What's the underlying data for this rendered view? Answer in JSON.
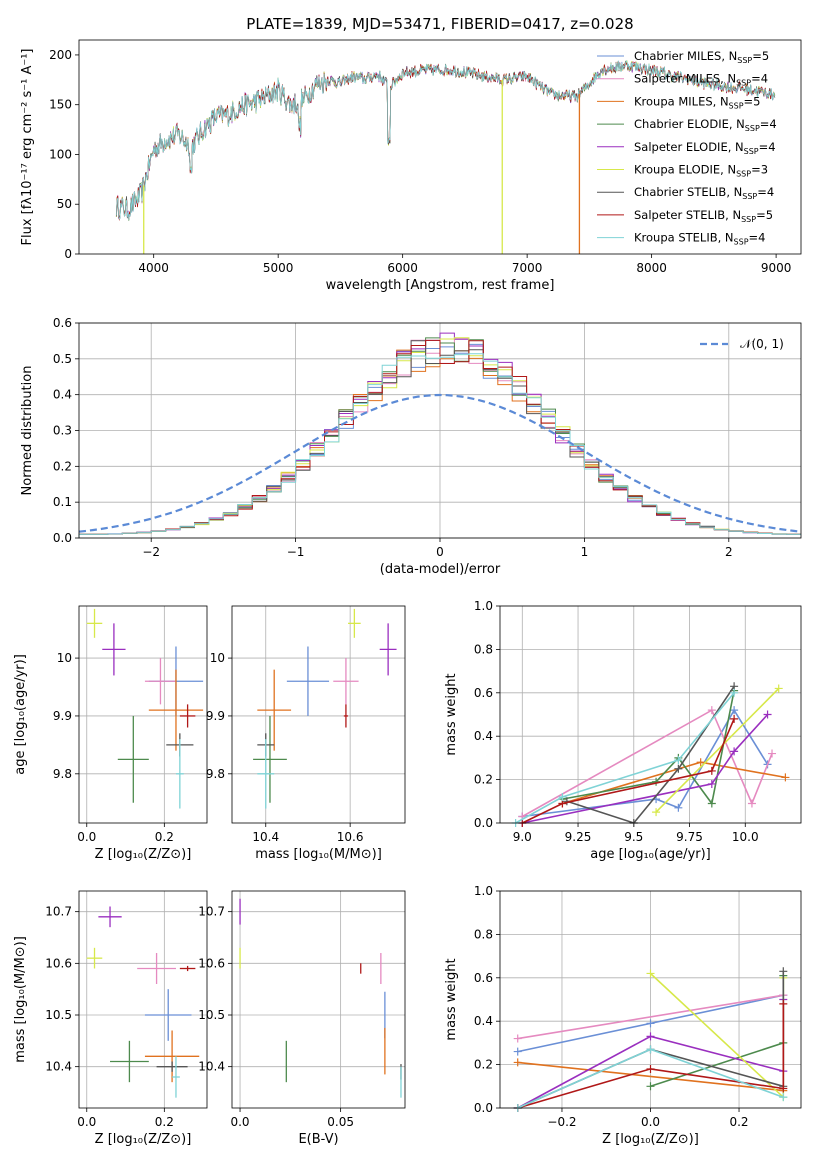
{
  "colors": {
    "chab_miles": "#6a8fd6",
    "salp_miles": "#e58ac0",
    "krou_miles": "#e0721f",
    "chab_elodie": "#4d8a4d",
    "salp_elodie": "#9a2fbf",
    "krou_elodie": "#d7e84a",
    "chab_stelib": "#555555",
    "salp_stelib": "#b01818",
    "krou_stelib": "#7fd3d6"
  },
  "chart_data": [
    {
      "id": "spectrum",
      "type": "line",
      "title": "PLATE=1839, MJD=53471, FIBERID=0417, z=0.028",
      "xlabel": "wavelength [Angstrom, rest frame]",
      "ylabel": "Flux [fλ10⁻¹⁷ erg cm⁻² s⁻¹ A⁻¹]",
      "xlim": [
        3400,
        9200
      ],
      "ylim": [
        0,
        215
      ],
      "xticks": [
        4000,
        5000,
        6000,
        7000,
        8000,
        9000
      ],
      "yticks": [
        0,
        50,
        100,
        150,
        200
      ],
      "grid": false,
      "legend": "top-right",
      "continuum": {
        "x": [
          3700,
          3800,
          3900,
          4000,
          4100,
          4200,
          4300,
          4400,
          4500,
          4600,
          4700,
          4800,
          4900,
          5000,
          5100,
          5200,
          5300,
          5400,
          5500,
          5600,
          5700,
          5800,
          5900,
          6000,
          6200,
          6400,
          6600,
          6800,
          7000,
          7200,
          7400,
          7600,
          7800,
          8000,
          8200,
          8400,
          8600,
          8800,
          8990
        ],
        "y": [
          48,
          45,
          60,
          105,
          115,
          120,
          108,
          125,
          138,
          140,
          148,
          152,
          158,
          165,
          150,
          155,
          170,
          175,
          172,
          178,
          176,
          180,
          168,
          182,
          185,
          185,
          180,
          175,
          178,
          160,
          158,
          185,
          190,
          185,
          178,
          172,
          168,
          165,
          160
        ]
      },
      "series": [
        {
          "name": "Chabrier MILES, N",
          "sub": "SSP",
          "n": "=5",
          "color": "#6a8fd6"
        },
        {
          "name": "Salpeter MILES, N",
          "sub": "SSP",
          "n": "=4",
          "color": "#e58ac0"
        },
        {
          "name": "Kroupa MILES, N",
          "sub": "SSP",
          "n": "=5",
          "color": "#e0721f"
        },
        {
          "name": "Chabrier ELODIE, N",
          "sub": "SSP",
          "n": "=4",
          "color": "#4d8a4d"
        },
        {
          "name": "Salpeter ELODIE, N",
          "sub": "SSP",
          "n": "=4",
          "color": "#9a2fbf"
        },
        {
          "name": "Kroupa ELODIE, N",
          "sub": "SSP",
          "n": "=3",
          "color": "#d7e84a"
        },
        {
          "name": "Chabrier STELIB, N",
          "sub": "SSP",
          "n": "=4",
          "color": "#555555"
        },
        {
          "name": "Salpeter STELIB, N",
          "sub": "SSP",
          "n": "=5",
          "color": "#b01818"
        },
        {
          "name": "Kroupa STELIB, N",
          "sub": "SSP",
          "n": "=4",
          "color": "#7fd3d6"
        }
      ]
    },
    {
      "id": "residuals",
      "type": "area",
      "xlabel": "(data-model)/error",
      "ylabel": "Normed distribution",
      "xlim": [
        -2.5,
        2.5
      ],
      "ylim": [
        0,
        0.6
      ],
      "xticks": [
        -2,
        -1,
        0,
        1,
        2
      ],
      "yticks": [
        0.0,
        0.1,
        0.2,
        0.3,
        0.4,
        0.5,
        0.6
      ],
      "grid": true,
      "legend": "top-right",
      "reference_label": "𝒩(0, 1)",
      "bin_width": 0.1
    },
    {
      "id": "age_vs_Z",
      "type": "scatter",
      "xlabel": "Z [log₁₀(Z/Z⊙)]",
      "ylabel": "age  [log₁₀(age/yr)]",
      "xlim": [
        -0.02,
        0.31
      ],
      "ylim": [
        9.715,
        10.09
      ],
      "xticks": [
        0.0,
        0.2
      ],
      "yticks": [
        9.8,
        9.9,
        10.0
      ],
      "grid": true,
      "points": [
        {
          "series": "Chabrier MILES",
          "x": 0.23,
          "y": 9.96,
          "xerr": 0.07,
          "yerr": 0.06
        },
        {
          "series": "Salpeter MILES",
          "x": 0.19,
          "y": 9.96,
          "xerr": 0.04,
          "yerr": 0.04
        },
        {
          "series": "Kroupa MILES",
          "x": 0.23,
          "y": 9.91,
          "xerr": 0.07,
          "yerr": 0.07
        },
        {
          "series": "Chabrier ELODIE",
          "x": 0.12,
          "y": 9.825,
          "xerr": 0.04,
          "yerr": 0.075
        },
        {
          "series": "Salpeter ELODIE",
          "x": 0.07,
          "y": 10.015,
          "xerr": 0.03,
          "yerr": 0.045
        },
        {
          "series": "Kroupa ELODIE",
          "x": 0.02,
          "y": 10.06,
          "xerr": 0.02,
          "yerr": 0.025
        },
        {
          "series": "Chabrier STELIB",
          "x": 0.24,
          "y": 9.85,
          "xerr": 0.035,
          "yerr": 0.02
        },
        {
          "series": "Salpeter STELIB",
          "x": 0.26,
          "y": 9.9,
          "xerr": 0.02,
          "yerr": 0.02
        },
        {
          "series": "Kroupa STELIB",
          "x": 0.24,
          "y": 9.8,
          "xerr": 0.01,
          "yerr": 0.06
        }
      ]
    },
    {
      "id": "age_vs_mass",
      "type": "scatter",
      "xlabel": "mass [log₁₀(M/M⊙)]",
      "ylabel": "",
      "xlim": [
        10.32,
        10.73
      ],
      "ylim": [
        9.715,
        10.09
      ],
      "xticks": [
        10.4,
        10.6
      ],
      "yticks": [
        9.8,
        9.9,
        10.0
      ],
      "grid": true,
      "points": [
        {
          "series": "Chabrier MILES",
          "x": 10.5,
          "y": 9.96,
          "xerr": 0.05,
          "yerr": 0.06
        },
        {
          "series": "Salpeter MILES",
          "x": 10.59,
          "y": 9.96,
          "xerr": 0.03,
          "yerr": 0.04
        },
        {
          "series": "Kroupa MILES",
          "x": 10.42,
          "y": 9.91,
          "xerr": 0.04,
          "yerr": 0.07
        },
        {
          "series": "Chabrier ELODIE",
          "x": 10.41,
          "y": 9.825,
          "xerr": 0.04,
          "yerr": 0.075
        },
        {
          "series": "Salpeter ELODIE",
          "x": 10.69,
          "y": 10.015,
          "xerr": 0.02,
          "yerr": 0.045
        },
        {
          "series": "Kroupa ELODIE",
          "x": 10.61,
          "y": 10.06,
          "xerr": 0.015,
          "yerr": 0.025
        },
        {
          "series": "Chabrier STELIB",
          "x": 10.4,
          "y": 9.85,
          "xerr": 0.02,
          "yerr": 0.02
        },
        {
          "series": "Salpeter STELIB",
          "x": 10.59,
          "y": 9.9,
          "xerr": 0.005,
          "yerr": 0.02
        },
        {
          "series": "Kroupa STELIB",
          "x": 10.4,
          "y": 9.8,
          "xerr": 0.02,
          "yerr": 0.06
        }
      ]
    },
    {
      "id": "weight_vs_age",
      "type": "line",
      "xlabel": "age  [log₁₀(age/yr)]",
      "ylabel": "mass weight",
      "xlim": [
        8.9,
        10.25
      ],
      "ylim": [
        0,
        1.0
      ],
      "xticks": [
        9.0,
        9.25,
        9.5,
        9.75,
        10.0
      ],
      "yticks": [
        0.0,
        0.2,
        0.4,
        0.6,
        0.8,
        1.0
      ],
      "grid": true,
      "lines": [
        {
          "series": "Chabrier MILES",
          "x": [
            9.0,
            9.6,
            9.7,
            9.95,
            10.1
          ],
          "y": [
            0.03,
            0.11,
            0.07,
            0.52,
            0.27
          ]
        },
        {
          "series": "Salpeter MILES",
          "x": [
            9.0,
            9.85,
            10.03,
            10.12
          ],
          "y": [
            0.03,
            0.52,
            0.09,
            0.32
          ]
        },
        {
          "series": "Kroupa MILES",
          "x": [
            9.18,
            9.8,
            10.18
          ],
          "y": [
            0.09,
            0.28,
            0.21
          ]
        },
        {
          "series": "Chabrier ELODIE",
          "x": [
            9.18,
            9.6,
            9.7,
            9.85,
            9.95
          ],
          "y": [
            0.11,
            0.19,
            0.3,
            0.09,
            0.61
          ]
        },
        {
          "series": "Salpeter ELODIE",
          "x": [
            9.0,
            9.85,
            9.95,
            10.1
          ],
          "y": [
            0.0,
            0.18,
            0.33,
            0.5
          ]
        },
        {
          "series": "Kroupa ELODIE",
          "x": [
            9.6,
            10.15
          ],
          "y": [
            0.05,
            0.62
          ]
        },
        {
          "series": "Chabrier STELIB",
          "x": [
            9.2,
            9.5,
            9.7,
            9.95
          ],
          "y": [
            0.1,
            0.0,
            0.25,
            0.63
          ]
        },
        {
          "series": "Salpeter STELIB",
          "x": [
            9.0,
            9.18,
            9.85,
            9.95
          ],
          "y": [
            0.0,
            0.09,
            0.24,
            0.48
          ]
        },
        {
          "series": "Kroupa STELIB",
          "x": [
            8.97,
            9.18,
            9.7,
            9.95
          ],
          "y": [
            0.0,
            0.12,
            0.29,
            0.6
          ]
        }
      ]
    },
    {
      "id": "mass_vs_Z",
      "type": "scatter",
      "xlabel": "Z [log₁₀(Z/Z⊙)]",
      "ylabel": "mass [log₁₀(M/M⊙)]",
      "xlim": [
        -0.02,
        0.31
      ],
      "ylim": [
        10.32,
        10.74
      ],
      "xticks": [
        0.0,
        0.2
      ],
      "yticks": [
        10.4,
        10.5,
        10.6,
        10.7
      ],
      "grid": true,
      "points": [
        {
          "series": "Chabrier MILES",
          "x": 0.21,
          "y": 10.5,
          "xerr": 0.06,
          "yerr": 0.05
        },
        {
          "series": "Salpeter MILES",
          "x": 0.18,
          "y": 10.59,
          "xerr": 0.05,
          "yerr": 0.03
        },
        {
          "series": "Kroupa MILES",
          "x": 0.22,
          "y": 10.42,
          "xerr": 0.07,
          "yerr": 0.05
        },
        {
          "series": "Chabrier ELODIE",
          "x": 0.11,
          "y": 10.41,
          "xerr": 0.05,
          "yerr": 0.04
        },
        {
          "series": "Salpeter ELODIE",
          "x": 0.06,
          "y": 10.69,
          "xerr": 0.03,
          "yerr": 0.02
        },
        {
          "series": "Kroupa ELODIE",
          "x": 0.02,
          "y": 10.61,
          "xerr": 0.02,
          "yerr": 0.02
        },
        {
          "series": "Chabrier STELIB",
          "x": 0.22,
          "y": 10.4,
          "xerr": 0.04,
          "yerr": 0.01
        },
        {
          "series": "Salpeter STELIB",
          "x": 0.26,
          "y": 10.59,
          "xerr": 0.02,
          "yerr": 0.005
        },
        {
          "series": "Kroupa STELIB",
          "x": 0.23,
          "y": 10.38,
          "xerr": 0.01,
          "yerr": 0.04
        }
      ]
    },
    {
      "id": "mass_vs_ebv",
      "type": "scatter",
      "xlabel": "E(B-V)",
      "ylabel": "",
      "xlim": [
        -0.004,
        0.082
      ],
      "ylim": [
        10.32,
        10.74
      ],
      "xticks": [
        0.0,
        0.05
      ],
      "yticks": [
        10.4,
        10.5,
        10.6,
        10.7
      ],
      "grid": true,
      "points": [
        {
          "series": "Chabrier MILES",
          "x": 0.072,
          "y": 10.5,
          "xerr": 0.0,
          "yerr": 0.045
        },
        {
          "series": "Salpeter MILES",
          "x": 0.07,
          "y": 10.59,
          "xerr": 0.0,
          "yerr": 0.03
        },
        {
          "series": "Kroupa MILES",
          "x": 0.072,
          "y": 10.43,
          "xerr": 0.0,
          "yerr": 0.045
        },
        {
          "series": "Chabrier ELODIE",
          "x": 0.023,
          "y": 10.41,
          "xerr": 0.0,
          "yerr": 0.04
        },
        {
          "series": "Salpeter ELODIE",
          "x": 0.0,
          "y": 10.7,
          "xerr": 0.0,
          "yerr": 0.025
        },
        {
          "series": "Kroupa ELODIE",
          "x": 0.0,
          "y": 10.61,
          "xerr": 0.0,
          "yerr": 0.02
        },
        {
          "series": "Chabrier STELIB",
          "x": 0.08,
          "y": 10.39,
          "xerr": 0.0,
          "yerr": 0.015
        },
        {
          "series": "Salpeter STELIB",
          "x": 0.06,
          "y": 10.59,
          "xerr": 0.0,
          "yerr": 0.01
        },
        {
          "series": "Kroupa STELIB",
          "x": 0.08,
          "y": 10.37,
          "xerr": 0.0,
          "yerr": 0.03
        }
      ]
    },
    {
      "id": "weight_vs_Z",
      "type": "line",
      "xlabel": "Z [log₁₀(Z/Z⊙)]",
      "ylabel": "mass weight",
      "xlim": [
        -0.34,
        0.34
      ],
      "ylim": [
        0,
        1.0
      ],
      "xticks": [
        -0.2,
        0.0,
        0.2
      ],
      "yticks": [
        0.0,
        0.2,
        0.4,
        0.6,
        0.8,
        1.0
      ],
      "grid": true,
      "lines": [
        {
          "series": "Chabrier MILES",
          "x": [
            -0.3,
            0.0,
            0.3
          ],
          "y": [
            0.26,
            0.39,
            0.52
          ]
        },
        {
          "series": "Salpeter MILES",
          "x": [
            -0.3,
            0.3
          ],
          "y": [
            0.32,
            0.52
          ]
        },
        {
          "series": "Kroupa MILES",
          "x": [
            -0.3,
            0.3
          ],
          "y": [
            0.21,
            0.08
          ]
        },
        {
          "series": "Chabrier ELODIE",
          "x": [
            0.0,
            0.3,
            0.3
          ],
          "y": [
            0.1,
            0.3,
            0.61
          ]
        },
        {
          "series": "Salpeter ELODIE",
          "x": [
            -0.3,
            0.0,
            0.3,
            0.3
          ],
          "y": [
            0.0,
            0.33,
            0.17,
            0.5
          ]
        },
        {
          "series": "Kroupa ELODIE",
          "x": [
            0.0,
            0.3,
            0.3
          ],
          "y": [
            0.62,
            0.05,
            0.6
          ]
        },
        {
          "series": "Chabrier STELIB",
          "x": [
            -0.3,
            0.0,
            0.3,
            0.3
          ],
          "y": [
            0.0,
            0.27,
            0.1,
            0.63
          ]
        },
        {
          "series": "Salpeter STELIB",
          "x": [
            -0.3,
            0.0,
            0.3,
            0.3
          ],
          "y": [
            0.0,
            0.18,
            0.09,
            0.48
          ]
        },
        {
          "series": "Kroupa STELIB",
          "x": [
            -0.3,
            0.0,
            0.3
          ],
          "y": [
            0.0,
            0.27,
            0.05
          ]
        }
      ]
    }
  ]
}
